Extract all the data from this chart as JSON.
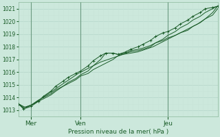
{
  "title": "Pression niveau de la mer( hPa )",
  "background_color": "#cce8dc",
  "grid_color_major": "#b8d8cc",
  "grid_color_minor": "#c8e4d8",
  "line_color": "#1a5c28",
  "ylim": [
    1012.5,
    1021.5
  ],
  "yticks": [
    1013,
    1014,
    1015,
    1016,
    1017,
    1018,
    1019,
    1020,
    1021
  ],
  "xlim": [
    0,
    8.0
  ],
  "day_labels": [
    "Mer",
    "Ven",
    "Jeu"
  ],
  "day_positions": [
    0.5,
    2.5,
    6.0
  ],
  "vline_positions": [
    0.5,
    2.5,
    6.0
  ],
  "n_pts": 40,
  "series1_x": [
    0.0,
    0.2,
    0.5,
    0.8,
    1.0,
    1.3,
    1.5,
    1.8,
    2.0,
    2.3,
    2.5,
    2.8,
    3.0,
    3.3,
    3.5,
    3.8,
    4.0,
    4.3,
    4.5,
    4.8,
    5.0,
    5.3,
    5.5,
    5.8,
    6.0,
    6.3,
    6.5,
    6.8,
    7.0,
    7.3,
    7.5,
    7.8,
    8.0
  ],
  "series1_y": [
    1013.5,
    1013.2,
    1013.4,
    1013.8,
    1014.0,
    1014.3,
    1014.6,
    1014.9,
    1015.1,
    1015.4,
    1015.7,
    1015.9,
    1016.2,
    1016.5,
    1016.7,
    1017.0,
    1017.3,
    1017.5,
    1017.7,
    1017.8,
    1017.9,
    1018.1,
    1018.3,
    1018.5,
    1018.7,
    1018.9,
    1019.1,
    1019.3,
    1019.6,
    1019.9,
    1020.2,
    1020.5,
    1021.0
  ],
  "series2_x": [
    0.0,
    0.2,
    0.5,
    0.8,
    1.0,
    1.3,
    1.5,
    1.8,
    2.0,
    2.3,
    2.5,
    2.8,
    3.0,
    3.3,
    3.5,
    3.8,
    4.0,
    4.3,
    4.5,
    4.8,
    5.0,
    5.3,
    5.5,
    5.8,
    6.0,
    6.3,
    6.5,
    6.8,
    7.0,
    7.3,
    7.5,
    7.8,
    8.0
  ],
  "series2_y": [
    1013.5,
    1013.2,
    1013.4,
    1013.7,
    1013.9,
    1014.2,
    1014.5,
    1014.9,
    1015.2,
    1015.5,
    1015.8,
    1016.1,
    1016.5,
    1017.0,
    1017.5,
    1017.5,
    1017.4,
    1017.5,
    1017.6,
    1017.7,
    1017.8,
    1018.0,
    1018.3,
    1018.6,
    1018.9,
    1019.2,
    1019.5,
    1019.8,
    1020.1,
    1020.4,
    1020.7,
    1021.0,
    1021.2
  ],
  "series3_x": [
    0.0,
    0.3,
    0.6,
    0.9,
    1.2,
    1.5,
    1.8,
    2.1,
    2.4,
    2.7,
    3.0,
    3.3,
    3.6,
    3.9,
    4.2,
    4.5,
    4.8,
    5.1,
    5.4,
    5.7,
    6.0,
    6.3,
    6.6,
    6.9,
    7.2,
    7.5,
    7.8,
    8.0
  ],
  "series3_y": [
    1013.5,
    1013.2,
    1013.5,
    1013.9,
    1014.3,
    1014.7,
    1015.1,
    1015.5,
    1015.9,
    1016.2,
    1016.5,
    1016.8,
    1017.0,
    1017.2,
    1017.4,
    1017.5,
    1017.6,
    1017.8,
    1018.0,
    1018.3,
    1018.6,
    1018.9,
    1019.2,
    1019.5,
    1019.8,
    1020.2,
    1020.7,
    1021.2
  ],
  "marked_x": [
    0.0,
    0.2,
    0.5,
    0.8,
    1.0,
    1.3,
    1.5,
    1.8,
    2.0,
    2.3,
    2.5,
    2.8,
    3.0,
    3.3,
    3.5,
    3.8,
    4.0,
    4.3,
    4.5,
    4.8,
    5.0,
    5.3,
    5.5,
    5.8,
    6.0,
    6.3,
    6.5,
    6.8,
    7.0,
    7.3,
    7.5,
    7.8,
    8.0
  ],
  "marked_y": [
    1013.5,
    1013.1,
    1013.3,
    1013.7,
    1014.1,
    1014.5,
    1014.9,
    1015.3,
    1015.6,
    1015.9,
    1016.1,
    1016.5,
    1016.9,
    1017.3,
    1017.5,
    1017.5,
    1017.4,
    1017.6,
    1017.8,
    1018.0,
    1018.2,
    1018.5,
    1018.8,
    1019.1,
    1019.2,
    1019.5,
    1019.8,
    1020.1,
    1020.4,
    1020.7,
    1021.0,
    1021.1,
    1021.2
  ]
}
